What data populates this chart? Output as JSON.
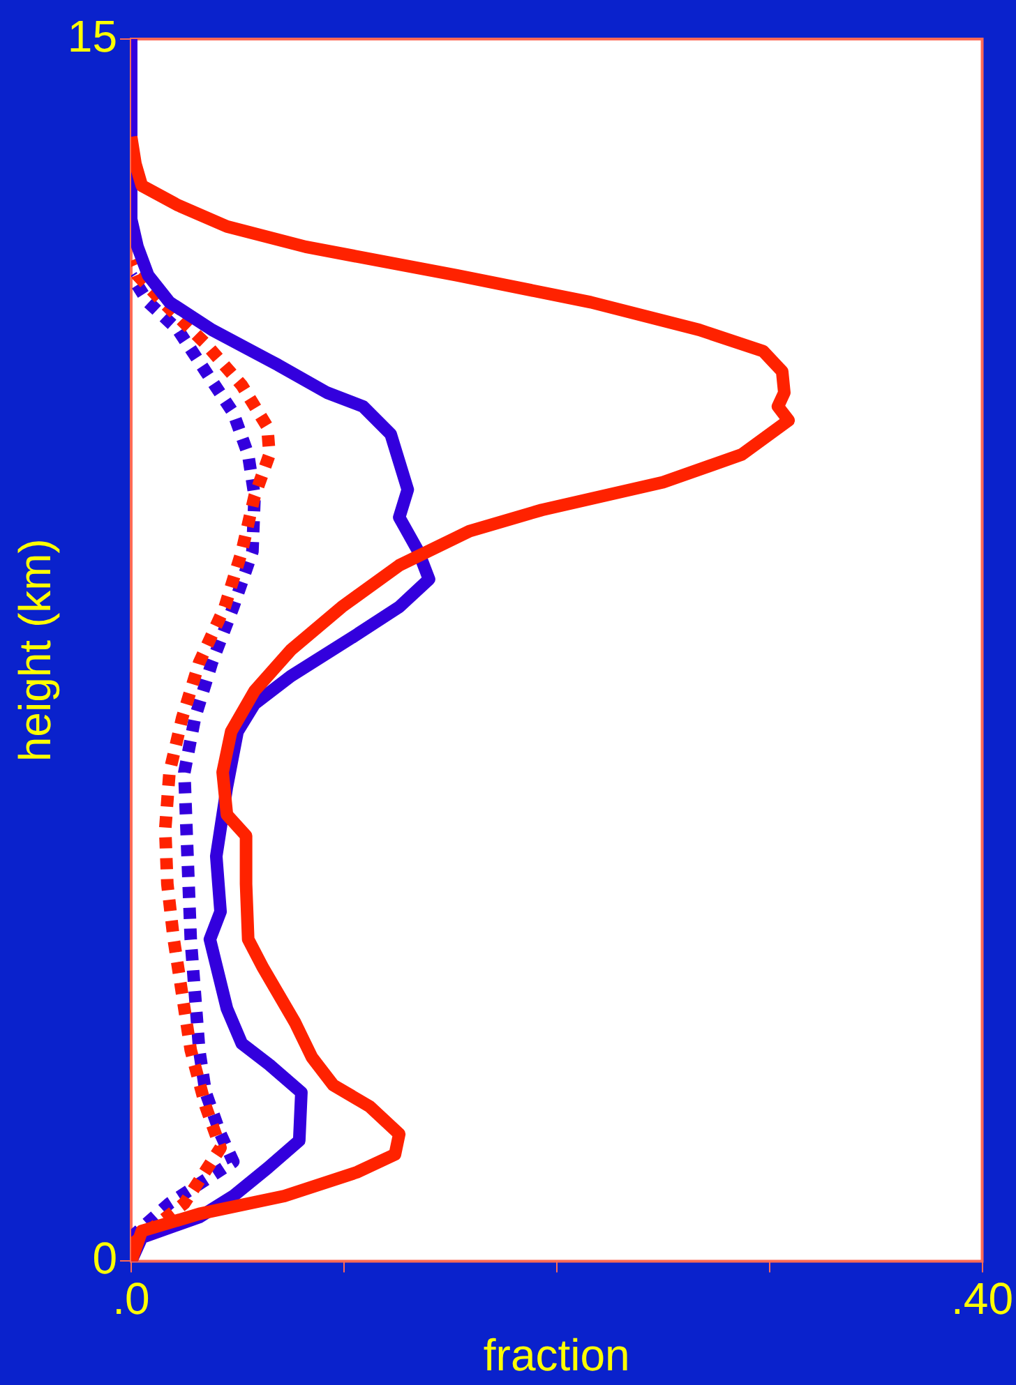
{
  "chart_data": {
    "type": "line",
    "xlabel": "fraction",
    "ylabel": "height (km)",
    "xlim": [
      0,
      0.4
    ],
    "xticks": [
      {
        "value": 0,
        "label": ".0"
      },
      {
        "value": 0.1,
        "label": null
      },
      {
        "value": 0.2,
        "label": null
      },
      {
        "value": 0.3,
        "label": null
      },
      {
        "value": 0.4,
        "label": ".40"
      }
    ],
    "ylim": [
      0,
      15
    ],
    "yticks": [
      0,
      15
    ],
    "grid": false,
    "legend": false,
    "series": [
      {
        "color": "#ff2200",
        "line_style": "solid",
        "x": [
          0,
          0.005,
          0.032,
          0.072,
          0.106,
          0.124,
          0.126,
          0.112,
          0.095,
          0.085,
          0.077,
          0.062,
          0.055,
          0.054,
          0.054,
          0.045,
          0.043,
          0.047,
          0.058,
          0.075,
          0.099,
          0.126,
          0.159,
          0.193,
          0.25,
          0.287,
          0.309,
          0.304,
          0.307,
          0.306,
          0.297,
          0.267,
          0.216,
          0.153,
          0.082,
          0.045,
          0.022,
          0.005,
          0.002,
          0
        ],
        "values": [
          0,
          0.37,
          0.58,
          0.8,
          1.09,
          1.31,
          1.56,
          1.9,
          2.16,
          2.5,
          2.93,
          3.6,
          3.95,
          4.63,
          5.22,
          5.48,
          6.0,
          6.5,
          7.0,
          7.5,
          8.03,
          8.54,
          8.96,
          9.22,
          9.56,
          9.9,
          10.32,
          10.49,
          10.66,
          10.92,
          11.17,
          11.43,
          11.77,
          12.1,
          12.45,
          12.7,
          12.96,
          13.2,
          13.47,
          13.8
        ]
      },
      {
        "color": "#3300dd",
        "line_style": "solid",
        "x": [
          0,
          0.005,
          0.032,
          0.048,
          0.064,
          0.079,
          0.08,
          0.065,
          0.052,
          0.045,
          0.037,
          0.042,
          0.04,
          0.045,
          0.05,
          0.058,
          0.075,
          0.106,
          0.126,
          0.14,
          0.135,
          0.126,
          0.13,
          0.126,
          0.122,
          0.109,
          0.092,
          0.069,
          0.038,
          0.018,
          0.008,
          0.003,
          0,
          0
        ],
        "values": [
          0,
          0.29,
          0.54,
          0.8,
          1.14,
          1.48,
          2.07,
          2.41,
          2.67,
          3.1,
          3.95,
          4.29,
          4.97,
          5.82,
          6.5,
          6.84,
          7.18,
          7.69,
          8.03,
          8.37,
          8.71,
          9.13,
          9.47,
          9.81,
          10.15,
          10.49,
          10.66,
          11.0,
          11.43,
          11.77,
          12.1,
          12.45,
          12.79,
          15
        ]
      },
      {
        "color": "#ff2200",
        "line_style": "dashed",
        "x": [
          0,
          0.025,
          0.042,
          0.035,
          0.028,
          0.024,
          0.02,
          0.017,
          0.016,
          0.018,
          0.024,
          0.032,
          0.044,
          0.052,
          0.058,
          0.065,
          0.064,
          0.052,
          0.035,
          0.015,
          0.003,
          0
        ],
        "values": [
          0.2,
          0.71,
          1.39,
          1.9,
          2.59,
          3.27,
          3.95,
          4.63,
          5.3,
          6.0,
          6.67,
          7.35,
          8.03,
          8.71,
          9.39,
          9.9,
          10.24,
          10.75,
          11.26,
          11.77,
          12.1,
          12.28
        ]
      },
      {
        "color": "#3300dd",
        "line_style": "dashed",
        "x": [
          0,
          0.018,
          0.048,
          0.042,
          0.035,
          0.032,
          0.03,
          0.028,
          0.027,
          0.026,
          0.025,
          0.03,
          0.038,
          0.048,
          0.057,
          0.058,
          0.055,
          0.048,
          0.035,
          0.022,
          0.008,
          0
        ],
        "values": [
          0.29,
          0.71,
          1.22,
          1.56,
          2.07,
          2.59,
          3.27,
          3.95,
          4.63,
          5.3,
          6.0,
          6.67,
          7.35,
          8.03,
          8.71,
          9.39,
          9.9,
          10.41,
          10.92,
          11.43,
          11.77,
          12.1
        ]
      }
    ]
  }
}
